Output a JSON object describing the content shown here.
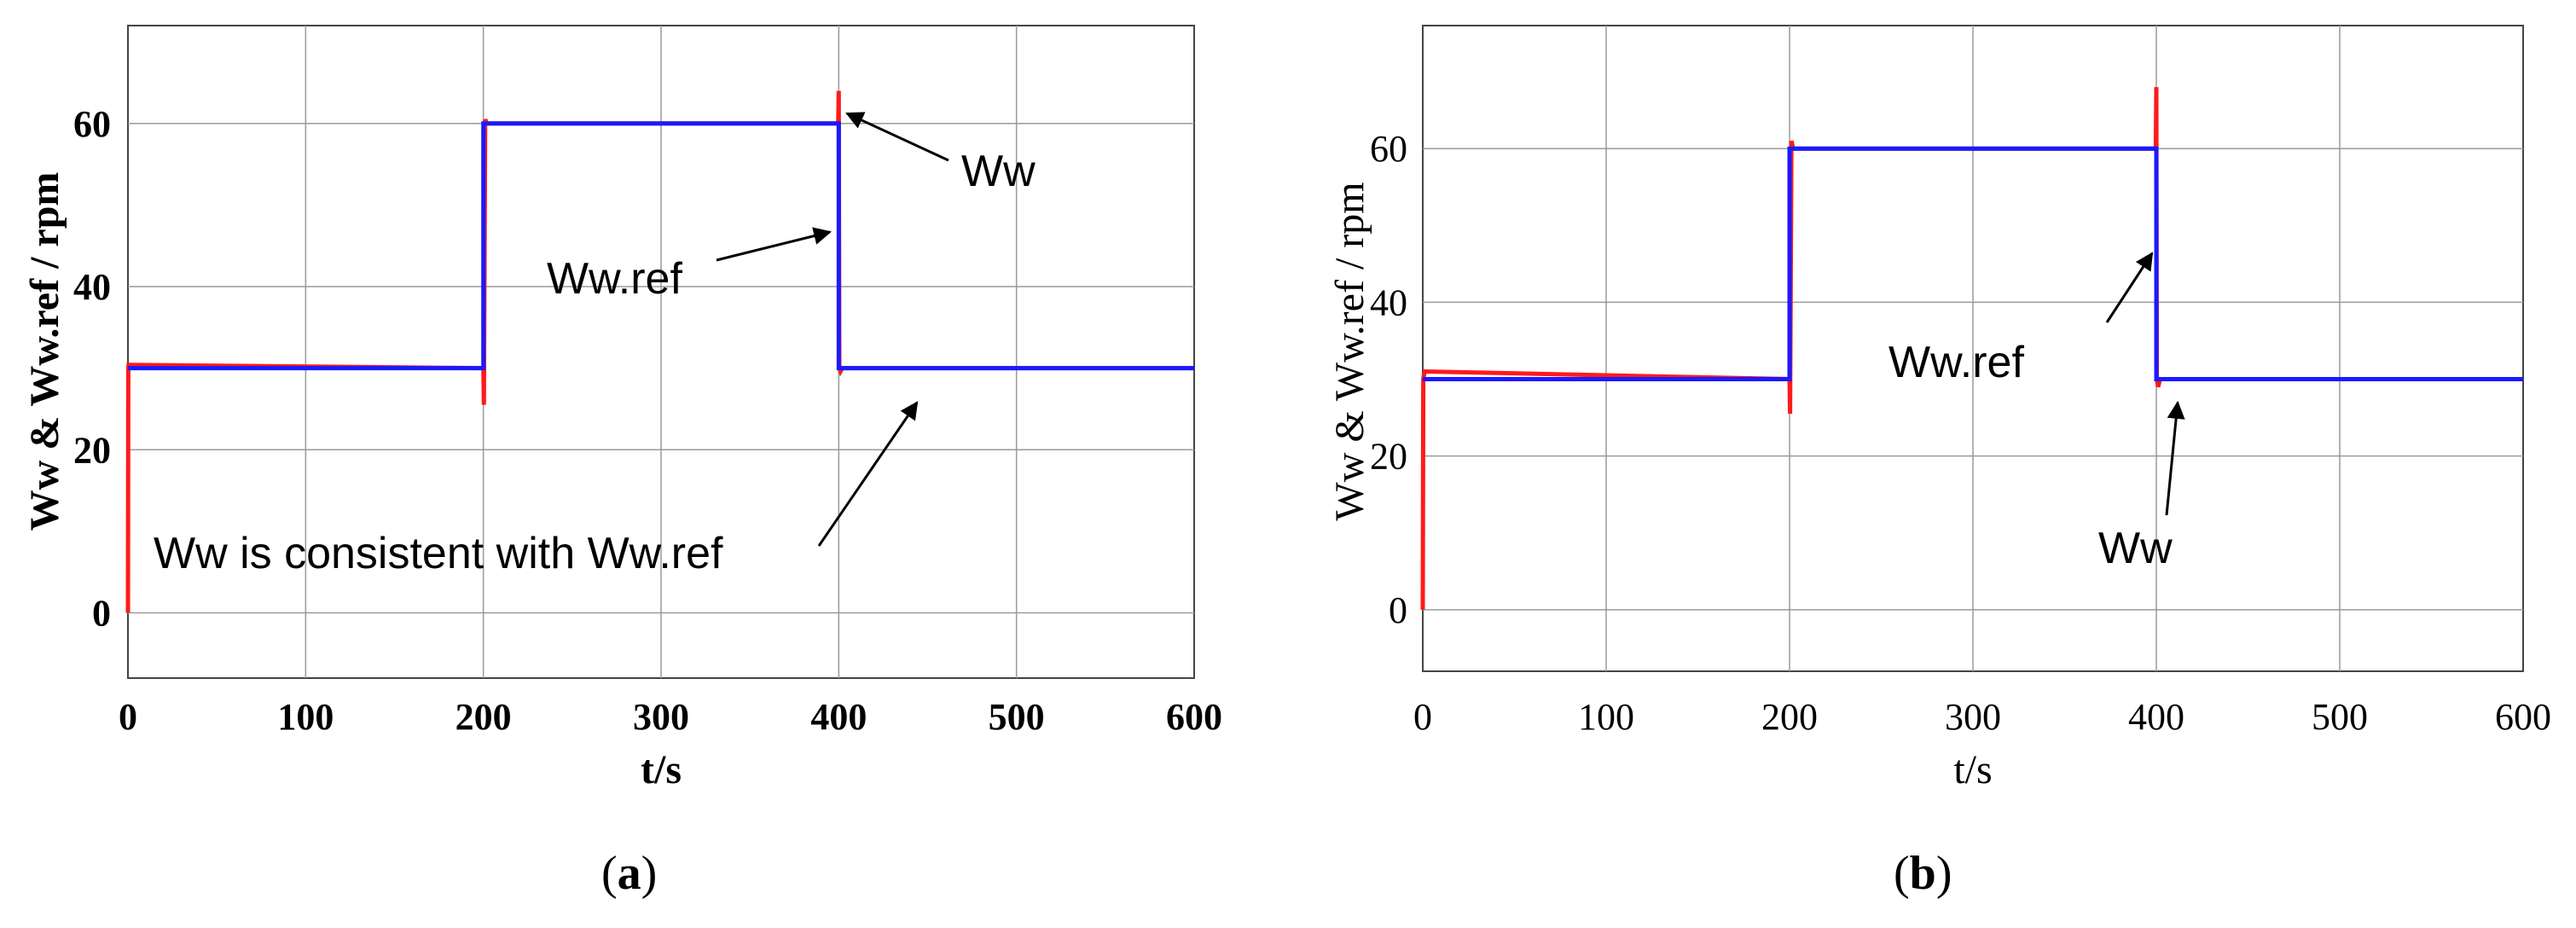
{
  "chart_data": [
    {
      "panel": "a",
      "type": "line",
      "caption_letter": "a",
      "xlabel": "t/s",
      "ylabel": "Ww & Ww.ref / rpm",
      "xlim": [
        0,
        600
      ],
      "ylim": [
        -8,
        72
      ],
      "xticks": [
        "0",
        "100",
        "200",
        "300",
        "400",
        "500",
        "600"
      ],
      "yticks": [
        "0",
        "20",
        "40",
        "60"
      ],
      "grid": true,
      "series": [
        {
          "name": "Ww",
          "color": "#ff1a1a",
          "x": [
            0,
            0.2,
            0.4,
            200,
            200.3,
            201,
            202,
            399.7,
            400,
            400.3,
            401,
            402,
            600
          ],
          "y": [
            0,
            30,
            30.4,
            30,
            25.5,
            60.5,
            60,
            60,
            64,
            30,
            29.6,
            30,
            30
          ]
        },
        {
          "name": "Ww.ref",
          "color": "#1a1aff",
          "x": [
            0,
            200,
            200,
            400,
            400,
            600
          ],
          "y": [
            30,
            30,
            60,
            60,
            30,
            30
          ]
        }
      ],
      "annotations": [
        {
          "text": "Ww"
        },
        {
          "text": "Ww.ref"
        },
        {
          "text": "Ww is consistent with Ww.ref"
        }
      ]
    },
    {
      "panel": "b",
      "type": "line",
      "caption_letter": "b",
      "xlabel": "t/s",
      "ylabel": "Ww & Ww.ref / rpm",
      "xlim": [
        0,
        600
      ],
      "ylim": [
        -8,
        76
      ],
      "xticks": [
        "0",
        "100",
        "200",
        "300",
        "400",
        "500",
        "600"
      ],
      "yticks": [
        "0",
        "20",
        "40",
        "60"
      ],
      "grid": true,
      "series": [
        {
          "name": "Ww",
          "color": "#ff1a1a",
          "x": [
            0,
            0.3,
            1,
            200,
            200.3,
            201,
            202,
            399.7,
            400,
            400.3,
            401,
            402,
            600
          ],
          "y": [
            0,
            30,
            31,
            30,
            25.5,
            61,
            60,
            60,
            68,
            30,
            29,
            30,
            30
          ]
        },
        {
          "name": "Ww.ref",
          "color": "#1a1aff",
          "x": [
            0,
            200,
            200,
            400,
            400,
            600
          ],
          "y": [
            30,
            30,
            60,
            60,
            30,
            30
          ]
        }
      ],
      "annotations": [
        {
          "text": "Ww.ref"
        },
        {
          "text": "Ww"
        }
      ]
    }
  ]
}
